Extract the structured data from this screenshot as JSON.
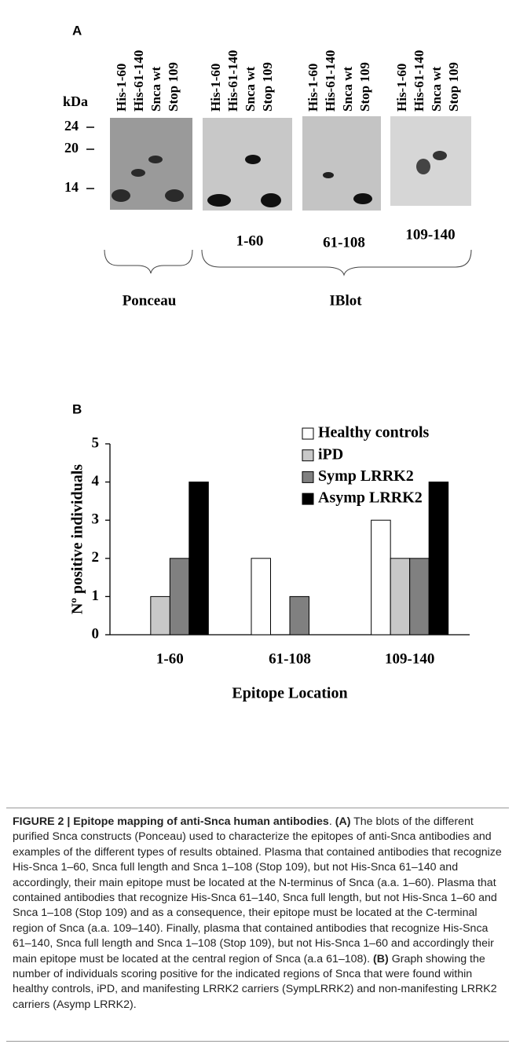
{
  "panel_a": {
    "label": "A",
    "lanes": [
      "His-1-60",
      "His-61-140",
      "Snca wt",
      "Stop 109"
    ],
    "kda_label": "kDa",
    "markers": [
      "24",
      "20",
      "14"
    ],
    "blot_labels": [
      "1-60",
      "61-108",
      "109-140"
    ],
    "groups": [
      "Ponceau",
      "IBlot"
    ]
  },
  "chart_data": {
    "type": "bar",
    "panel_label": "B",
    "y_label": "Nº positive individuals",
    "x_label": "Epitope Location",
    "categories": [
      "1-60",
      "61-108",
      "109-140"
    ],
    "series": [
      {
        "name": "Healthy controls",
        "color": "#ffffff",
        "values": [
          0,
          2,
          3
        ]
      },
      {
        "name": "iPD",
        "color": "#c8c8c8",
        "values": [
          1,
          0,
          2
        ]
      },
      {
        "name": "Symp LRRK2",
        "color": "#808080",
        "values": [
          2,
          1,
          2
        ]
      },
      {
        "name": "Asymp LRRK2",
        "color": "#000000",
        "values": [
          4,
          0,
          4
        ]
      }
    ],
    "ylim": [
      0,
      5
    ],
    "yticks": [
      0,
      1,
      2,
      3,
      4,
      5
    ],
    "legend": "top-right"
  },
  "caption": {
    "title": "FIGURE 2 | Epitope mapping of anti-Snca human antibodies",
    "separator": ".",
    "a_label": "(A)",
    "a_text": "The blots of the different purified Snca constructs (Ponceau) used to characterize the epitopes of anti-Snca antibodies and examples of the different types of results obtained. Plasma that contained antibodies that recognize His-Snca 1–60, Snca full length and Snca 1–108 (Stop 109), but not His-Snca 61–140 and accordingly, their main epitope must be located at the N-terminus of Snca (a.a. 1–60). Plasma that contained antibodies that recognize His-Snca 61–140, Snca full length, but not His-Snca 1–60 and Snca 1–108 (Stop 109) and as a consequence, their epitope must be located at the C-terminal region of Snca (a.a. 109–140). Finally, plasma that contained antibodies that recognize His-Snca 61–140, Snca full length and Snca 1–108 (Stop 109), but not His-Snca 1–60 and accordingly their main epitope must be located at the central region of Snca (a.a 61–108).",
    "b_label": "(B)",
    "b_text": "Graph showing the number of individuals scoring positive for the indicated regions of Snca that were found within healthy controls, iPD, and manifesting LRRK2 carriers (SympLRRK2) and non-manifesting LRRK2 carriers (Asymp LRRK2)."
  }
}
